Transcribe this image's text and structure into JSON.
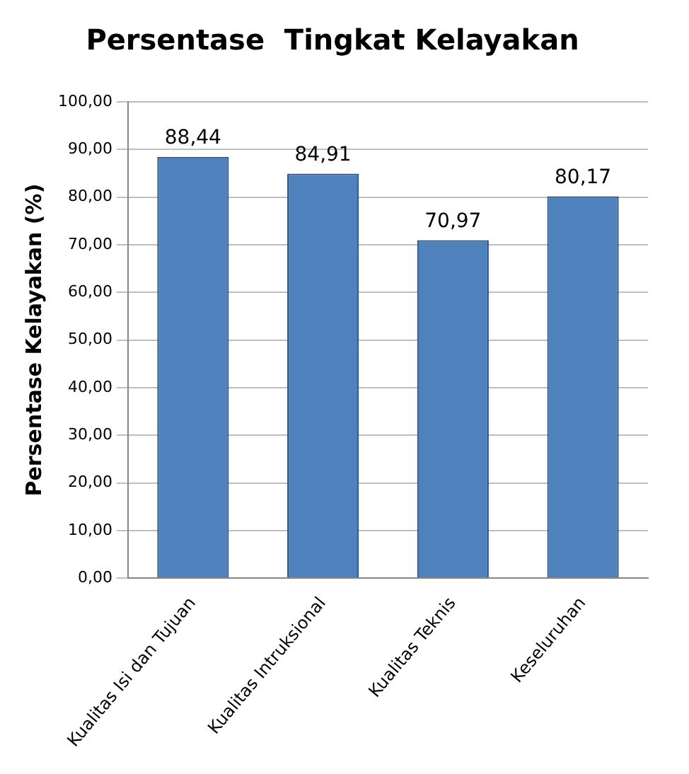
{
  "chart_data": {
    "type": "bar",
    "title": "Persentase  Tingkat Kelayakan",
    "ylabel": "Persentase Kelayakan (%)",
    "categories": [
      "Kualitas Isi dan Tujuan",
      "Kualitas Intruksional",
      "Kualitas Teknis",
      "Keseluruhan"
    ],
    "values": [
      88.44,
      84.91,
      70.97,
      80.17
    ],
    "value_labels": [
      "88,44",
      "84,91",
      "70,97",
      "80,17"
    ],
    "color": "#4f81bd",
    "ylim": [
      0,
      100
    ],
    "yticks": [
      {
        "value": 0,
        "label": "0,00"
      },
      {
        "value": 10,
        "label": "10,00"
      },
      {
        "value": 20,
        "label": "20,00"
      },
      {
        "value": 30,
        "label": "30,00"
      },
      {
        "value": 40,
        "label": "40,00"
      },
      {
        "value": 50,
        "label": "50,00"
      },
      {
        "value": 60,
        "label": "60,00"
      },
      {
        "value": 70,
        "label": "70,00"
      },
      {
        "value": 80,
        "label": "80,00"
      },
      {
        "value": 90,
        "label": "90,00"
      },
      {
        "value": 100,
        "label": "100,00"
      }
    ],
    "grid": "y",
    "legend": false
  }
}
